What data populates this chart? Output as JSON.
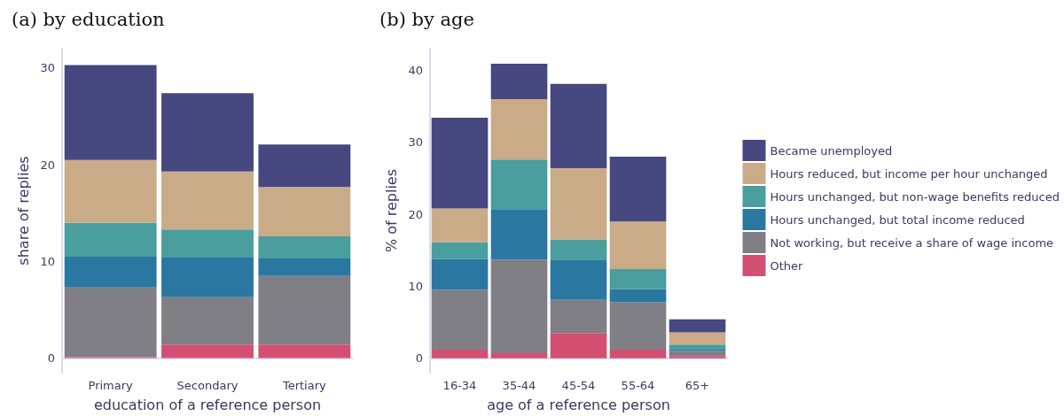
{
  "chart_data": [
    {
      "type": "bar",
      "title": "(a) by education",
      "xlabel": "education of a reference person",
      "ylabel": "share of replies",
      "categories": [
        "Primary",
        "Secondary",
        "Tertiary"
      ],
      "stacked": true,
      "ylim": [
        -1.5,
        32
      ],
      "yticks": [
        0,
        10,
        20,
        30
      ],
      "grid": false,
      "legend": false,
      "series": [
        {
          "color": "#d35073",
          "values": [
            0.1,
            1.4,
            1.4
          ]
        },
        {
          "color": "#807f86",
          "values": [
            7.2,
            4.9,
            7.1
          ]
        },
        {
          "color": "#2a77a1",
          "values": [
            3.2,
            4.1,
            1.8
          ]
        },
        {
          "color": "#4a9e9d",
          "values": [
            3.5,
            2.9,
            2.3
          ]
        },
        {
          "color": "#c9ab88",
          "values": [
            6.5,
            6.0,
            5.1
          ]
        },
        {
          "color": "#46487f",
          "values": [
            9.8,
            8.1,
            4.4
          ]
        }
      ]
    },
    {
      "type": "bar",
      "title": "(b) by age",
      "xlabel": "age of a reference person",
      "ylabel": "% of replies",
      "categories": [
        "16-34",
        "35-44",
        "45-54",
        "55-64",
        "65+"
      ],
      "stacked": true,
      "ylim": [
        -2,
        43
      ],
      "yticks": [
        0,
        10,
        20,
        30,
        40
      ],
      "grid": false,
      "legend": "right",
      "series": [
        {
          "name": "Other",
          "color": "#d35073",
          "values": [
            1.2,
            0.7,
            3.5,
            1.2,
            0.3
          ]
        },
        {
          "name": "Not working, but receive a share of wage income",
          "color": "#807f86",
          "values": [
            8.3,
            13.0,
            4.6,
            6.6,
            0.7
          ]
        },
        {
          "name": "Hours unchanged, but total income reduced",
          "color": "#2a77a1",
          "values": [
            4.3,
            7.0,
            5.5,
            1.8,
            0.3
          ]
        },
        {
          "name": "Hours unchanged, but non-wage benefits reduced",
          "color": "#4a9e9d",
          "values": [
            2.3,
            6.9,
            2.9,
            2.8,
            0.6
          ]
        },
        {
          "name": "Hours reduced, but income per hour unchanged",
          "color": "#c9ab88",
          "values": [
            4.7,
            8.4,
            9.9,
            6.6,
            1.7
          ]
        },
        {
          "name": "Became unemployed",
          "color": "#46487f",
          "values": [
            12.6,
            4.9,
            11.7,
            9.0,
            1.8
          ]
        }
      ]
    }
  ]
}
